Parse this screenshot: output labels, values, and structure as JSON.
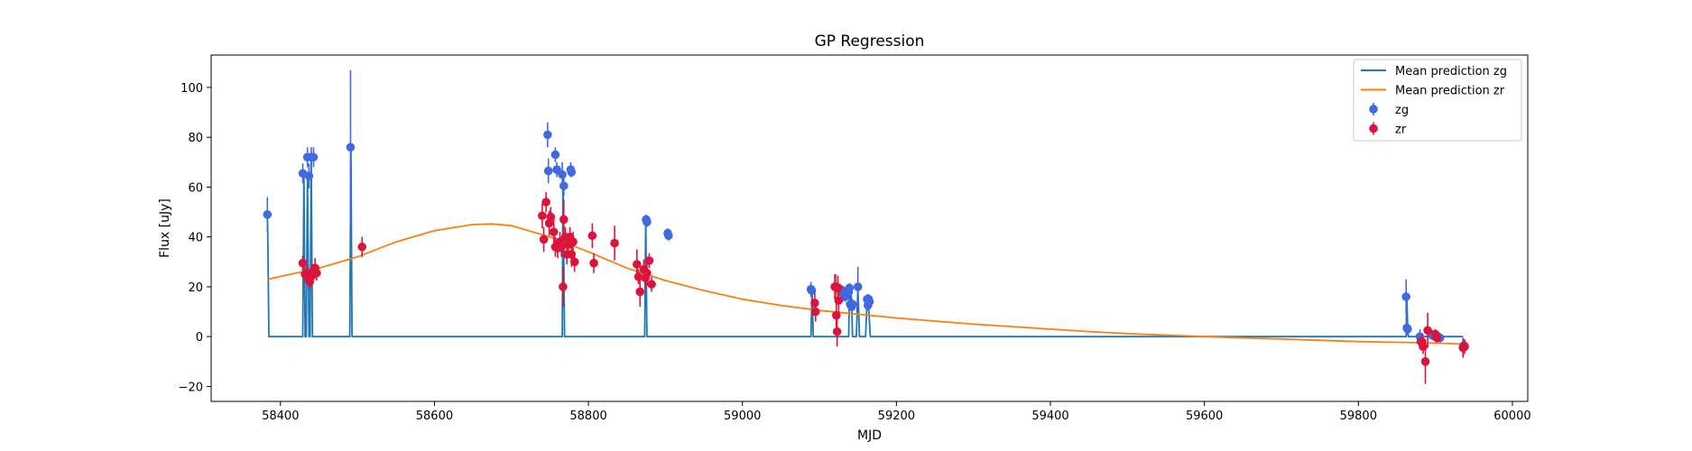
{
  "chart_data": {
    "type": "line",
    "title": "GP Regression",
    "xlabel": "MJD",
    "ylabel": "Flux [uJy]",
    "xlim": [
      58310,
      60020
    ],
    "ylim": [
      -26,
      113
    ],
    "x_ticks": [
      58400,
      58600,
      58800,
      59000,
      59200,
      59400,
      59600,
      59800,
      60000
    ],
    "y_ticks": [
      -20,
      0,
      20,
      40,
      60,
      80,
      100
    ],
    "grid": false,
    "legend_position": "top-right",
    "colors": {
      "zg_line": "#1f77b4",
      "zr_line": "#ff7f0e",
      "zg_points": "#4169e1",
      "zr_points": "#dc143c"
    },
    "legend": [
      {
        "label": "Mean prediction zg",
        "kind": "line",
        "color": "#1f77b4"
      },
      {
        "label": "Mean prediction zr",
        "kind": "line",
        "color": "#ff7f0e"
      },
      {
        "label": "zg",
        "kind": "errorbar",
        "color": "#4169e1"
      },
      {
        "label": "zr",
        "kind": "errorbar",
        "color": "#dc143c"
      }
    ],
    "series": [
      {
        "name": "Mean prediction zg",
        "kind": "line",
        "color": "#1f77b4",
        "x": [
          58383,
          58383.5,
          58385,
          58429,
          58430.5,
          58432,
          58433.5,
          58435,
          58437,
          58438.5,
          58440,
          58441.5,
          58443,
          58445,
          58490,
          58491.5,
          58493,
          58766,
          58767,
          58768,
          58769,
          58873,
          58874.5,
          58876,
          59089,
          59090.5,
          59092,
          59138,
          59139,
          59140,
          59141,
          59142,
          59143,
          59148,
          59150,
          59152,
          59160,
          59162,
          59164,
          59166,
          59862,
          59863,
          59864,
          59865,
          59866,
          59936
        ],
        "y": [
          49,
          42,
          0,
          0,
          65,
          0,
          0,
          64,
          0,
          0,
          72,
          0,
          0,
          0,
          0,
          76,
          0,
          0,
          66,
          30,
          0,
          0,
          47,
          0,
          0,
          19,
          0,
          0,
          19,
          13,
          19,
          12,
          0,
          0,
          20,
          0,
          0,
          15,
          12,
          0,
          0,
          16,
          3,
          0,
          0,
          0
        ]
      },
      {
        "name": "Mean prediction zr",
        "kind": "line",
        "color": "#ff7f0e",
        "x": [
          58383,
          58450,
          58500,
          58550,
          58600,
          58650,
          58675,
          58700,
          58750,
          58800,
          58850,
          58900,
          58950,
          59000,
          59050,
          59100,
          59150,
          59200,
          59250,
          59300,
          59350,
          59400,
          59450,
          59500,
          59550,
          59600,
          59650,
          59700,
          59750,
          59800,
          59850,
          59900,
          59938
        ],
        "y": [
          23,
          27.5,
          32,
          38,
          42.5,
          45,
          45.2,
          44.5,
          40,
          34,
          27.5,
          22.5,
          18.5,
          15,
          12.5,
          10.5,
          9,
          7.5,
          6.2,
          5,
          4,
          3,
          2,
          1.2,
          0.6,
          0,
          -0.5,
          -1,
          -1.5,
          -2,
          -2.3,
          -2.6,
          -3
        ]
      },
      {
        "name": "zg",
        "kind": "errorbar",
        "color": "#4169e1",
        "x": [
          58383,
          58429,
          58435,
          58437,
          58440,
          58443,
          58491,
          58747,
          58748,
          58757,
          58759,
          58766,
          58768,
          58777,
          58778,
          58875,
          58876,
          58903,
          58904,
          59089,
          59090,
          59125,
          59128,
          59130,
          59133,
          59138,
          59139,
          59140,
          59141,
          59142,
          59143,
          59150,
          59162,
          59163,
          59164,
          59165,
          59862,
          59863,
          59864,
          59880,
          59881,
          59896,
          59900,
          59906,
          59936,
          59937
        ],
        "y": [
          49,
          65.5,
          72,
          64.5,
          72,
          72,
          76,
          81,
          66.5,
          73,
          67,
          65,
          60.5,
          67,
          66,
          47,
          46,
          41.5,
          40.5,
          19,
          18.5,
          19.5,
          18,
          18.5,
          16,
          18,
          19.5,
          13,
          12.5,
          12,
          13,
          20,
          15,
          12.5,
          15,
          14,
          16,
          3.5,
          3,
          0,
          -2,
          0.5,
          0.5,
          -0.5,
          -4,
          -3.5
        ],
        "err": [
          7,
          4,
          4,
          5,
          4,
          4,
          31,
          5,
          5,
          3,
          3,
          5,
          4,
          3,
          2,
          2,
          2,
          2,
          2,
          3,
          2,
          2,
          2,
          2,
          2,
          2,
          2,
          2,
          2,
          2,
          2,
          8,
          2,
          2,
          2,
          2,
          7,
          3,
          2,
          3,
          3,
          2,
          2,
          2,
          2,
          2
        ]
      },
      {
        "name": "zr",
        "kind": "errorbar",
        "color": "#dc143c",
        "x": [
          58429,
          58432,
          58435,
          58438,
          58440,
          58442,
          58445,
          58447,
          58506,
          58740,
          58742,
          58745,
          58749,
          58751,
          58755,
          58757,
          58760,
          58763,
          58765,
          58767,
          58768,
          58770,
          58772,
          58774,
          58776,
          58778,
          58780,
          58782,
          58805,
          58807,
          58834,
          58863,
          58865,
          58867,
          58872,
          58874,
          58876,
          58879,
          58882,
          59094,
          59095,
          59120,
          59121,
          59122,
          59123,
          59124,
          59125,
          59882,
          59884,
          59887,
          59890,
          59900,
          59902,
          59936,
          59938
        ],
        "y": [
          29.5,
          25,
          25.5,
          22,
          24,
          26,
          27.5,
          25.5,
          36,
          48.5,
          39,
          54,
          45.5,
          48,
          42,
          36,
          35.5,
          38,
          36,
          20,
          47,
          40,
          33,
          37,
          40,
          33,
          38,
          30,
          40.5,
          29.5,
          37.5,
          29,
          24,
          18,
          27,
          23.5,
          25.5,
          30.5,
          21,
          13.5,
          10,
          20,
          20,
          8.5,
          2,
          19.5,
          14.5,
          -2,
          -4,
          -10,
          2.5,
          1,
          -0.5,
          -4.5,
          -4
        ],
        "err": [
          3,
          3,
          3,
          3,
          4,
          3,
          4,
          3,
          4,
          5,
          5,
          4,
          5,
          4,
          5,
          4,
          4,
          4,
          4,
          8,
          8,
          4,
          4,
          4,
          4,
          5,
          4,
          4,
          5,
          4,
          7,
          6,
          3,
          6,
          4,
          4,
          5,
          3,
          3,
          4,
          4,
          5,
          5,
          5,
          6,
          5,
          5,
          3,
          3,
          9,
          7,
          2,
          2,
          4,
          3
        ]
      }
    ]
  }
}
